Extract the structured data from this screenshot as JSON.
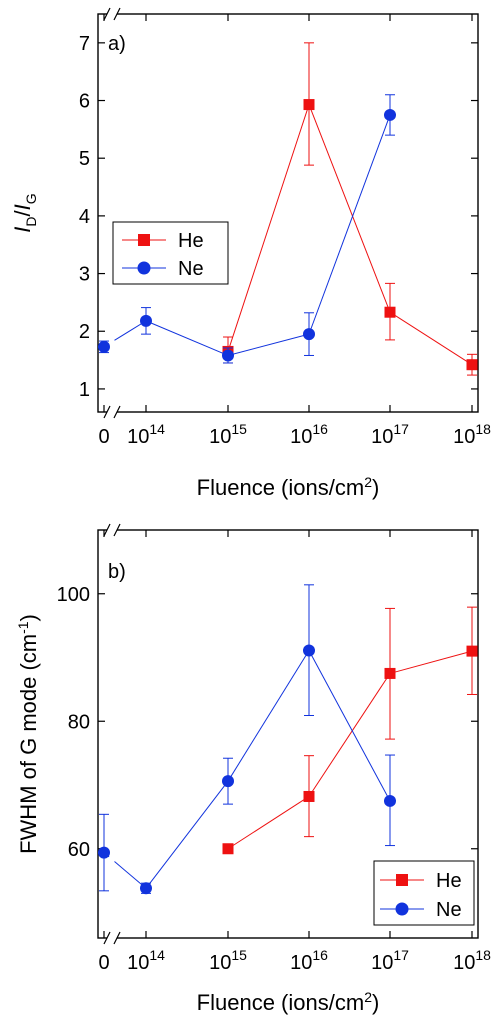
{
  "colors": {
    "He": "#ee1111",
    "Ne": "#1133dd"
  },
  "chart_data": [
    {
      "type": "scatter",
      "panel_label": "a)",
      "xlabel": "Fluence (ions/cm",
      "xlabel_sup": "2",
      "xlabel_tail": ")",
      "ylabel_main": "I",
      "ylabel_sub_num": "D",
      "ylabel_slash": "/",
      "ylabel_main2": "I",
      "ylabel_sub_den": "G",
      "x_ticks": [
        {
          "value": 0,
          "base": "0",
          "exp": ""
        },
        {
          "value": 14,
          "base": "10",
          "exp": "14"
        },
        {
          "value": 15,
          "base": "10",
          "exp": "15"
        },
        {
          "value": 16,
          "base": "10",
          "exp": "16"
        },
        {
          "value": 17,
          "base": "10",
          "exp": "17"
        },
        {
          "value": 18,
          "base": "10",
          "exp": "18"
        }
      ],
      "y_ticks": [
        1,
        2,
        3,
        4,
        5,
        6,
        7
      ],
      "ylim": [
        0.6,
        7.5
      ],
      "axis_break": true,
      "legend_position": "middle-left",
      "series": [
        {
          "name": "He",
          "marker": "square",
          "points": [
            {
              "x": 15,
              "y": 1.65,
              "err_lo": 0.2,
              "err_hi": 0.25
            },
            {
              "x": 16,
              "y": 5.93,
              "err_lo": 1.05,
              "err_hi": 1.07
            },
            {
              "x": 17,
              "y": 2.33,
              "err_lo": 0.48,
              "err_hi": 0.5
            },
            {
              "x": 18,
              "y": 1.42,
              "err_lo": 0.18,
              "err_hi": 0.18
            }
          ]
        },
        {
          "name": "Ne",
          "marker": "circle",
          "points": [
            {
              "x": 0,
              "y": 1.73,
              "err_lo": 0.1,
              "err_hi": 0.1
            },
            {
              "x": 14,
              "y": 2.18,
              "err_lo": 0.23,
              "err_hi": 0.23
            },
            {
              "x": 15,
              "y": 1.58,
              "err_lo": 0.13,
              "err_hi": 0.13
            },
            {
              "x": 16,
              "y": 1.95,
              "err_lo": 0.37,
              "err_hi": 0.37
            },
            {
              "x": 17,
              "y": 5.75,
              "err_lo": 0.35,
              "err_hi": 0.35
            }
          ]
        }
      ]
    },
    {
      "type": "scatter",
      "panel_label": "b)",
      "xlabel": "Fluence (ions/cm",
      "xlabel_sup": "2",
      "xlabel_tail": ")",
      "ylabel_text": "FWHM of G mode (cm",
      "ylabel_sup": "-1",
      "ylabel_tail": ")",
      "x_ticks": [
        {
          "value": 0,
          "base": "0",
          "exp": ""
        },
        {
          "value": 14,
          "base": "10",
          "exp": "14"
        },
        {
          "value": 15,
          "base": "10",
          "exp": "15"
        },
        {
          "value": 16,
          "base": "10",
          "exp": "16"
        },
        {
          "value": 17,
          "base": "10",
          "exp": "17"
        },
        {
          "value": 18,
          "base": "10",
          "exp": "18"
        }
      ],
      "y_ticks": [
        60,
        80,
        100
      ],
      "ylim": [
        46,
        110
      ],
      "axis_break": true,
      "legend_position": "bottom-right",
      "series": [
        {
          "name": "He",
          "marker": "square",
          "points": [
            {
              "x": 15,
              "y": 60,
              "err_lo": 0,
              "err_hi": 0
            },
            {
              "x": 16,
              "y": 68.2,
              "err_lo": 6.3,
              "err_hi": 6.4
            },
            {
              "x": 17,
              "y": 87.5,
              "err_lo": 10.3,
              "err_hi": 10.2
            },
            {
              "x": 18,
              "y": 91,
              "err_lo": 6.8,
              "err_hi": 6.9
            }
          ]
        },
        {
          "name": "Ne",
          "marker": "circle",
          "points": [
            {
              "x": 0,
              "y": 59.4,
              "err_lo": 6,
              "err_hi": 6
            },
            {
              "x": 14,
              "y": 53.8,
              "err_lo": 0.8,
              "err_hi": 0.8
            },
            {
              "x": 15,
              "y": 70.6,
              "err_lo": 3.6,
              "err_hi": 3.6
            },
            {
              "x": 16,
              "y": 91.1,
              "err_lo": 10.2,
              "err_hi": 10.3
            },
            {
              "x": 17,
              "y": 67.5,
              "err_lo": 7,
              "err_hi": 7.2
            }
          ]
        }
      ]
    }
  ]
}
